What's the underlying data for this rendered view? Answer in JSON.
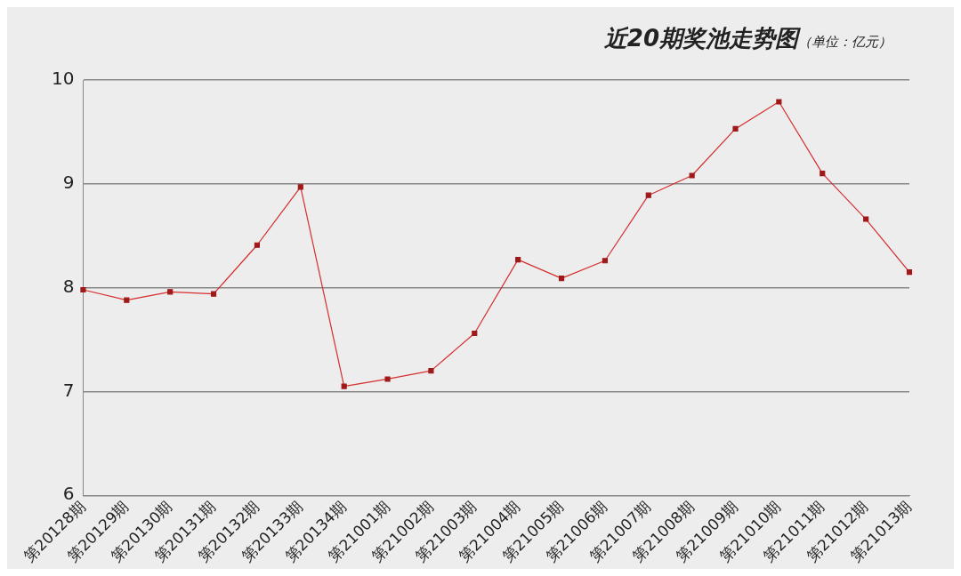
{
  "chart_data": {
    "type": "line",
    "title": "近20期奖池走势图",
    "subtitle": "（单位：亿元）",
    "categories": [
      "第20128期",
      "第20129期",
      "第20130期",
      "第20131期",
      "第20132期",
      "第20133期",
      "第20134期",
      "第21001期",
      "第21002期",
      "第21003期",
      "第21004期",
      "第21005期",
      "第21006期",
      "第21007期",
      "第21008期",
      "第21009期",
      "第21010期",
      "第21011期",
      "第21012期",
      "第21013期"
    ],
    "series": [
      {
        "color": "#d42f2f",
        "values": [
          7.98,
          7.88,
          7.96,
          7.94,
          8.41,
          8.97,
          7.05,
          7.12,
          7.2,
          7.56,
          8.27,
          8.09,
          8.26,
          8.89,
          9.08,
          9.53,
          9.79,
          9.1,
          8.66,
          8.15
        ]
      }
    ],
    "ylim": [
      6,
      10
    ],
    "yticks": [
      6,
      7,
      8,
      9,
      10
    ],
    "grid": "y",
    "legend": false,
    "marker": "square",
    "line_style": "solid"
  }
}
